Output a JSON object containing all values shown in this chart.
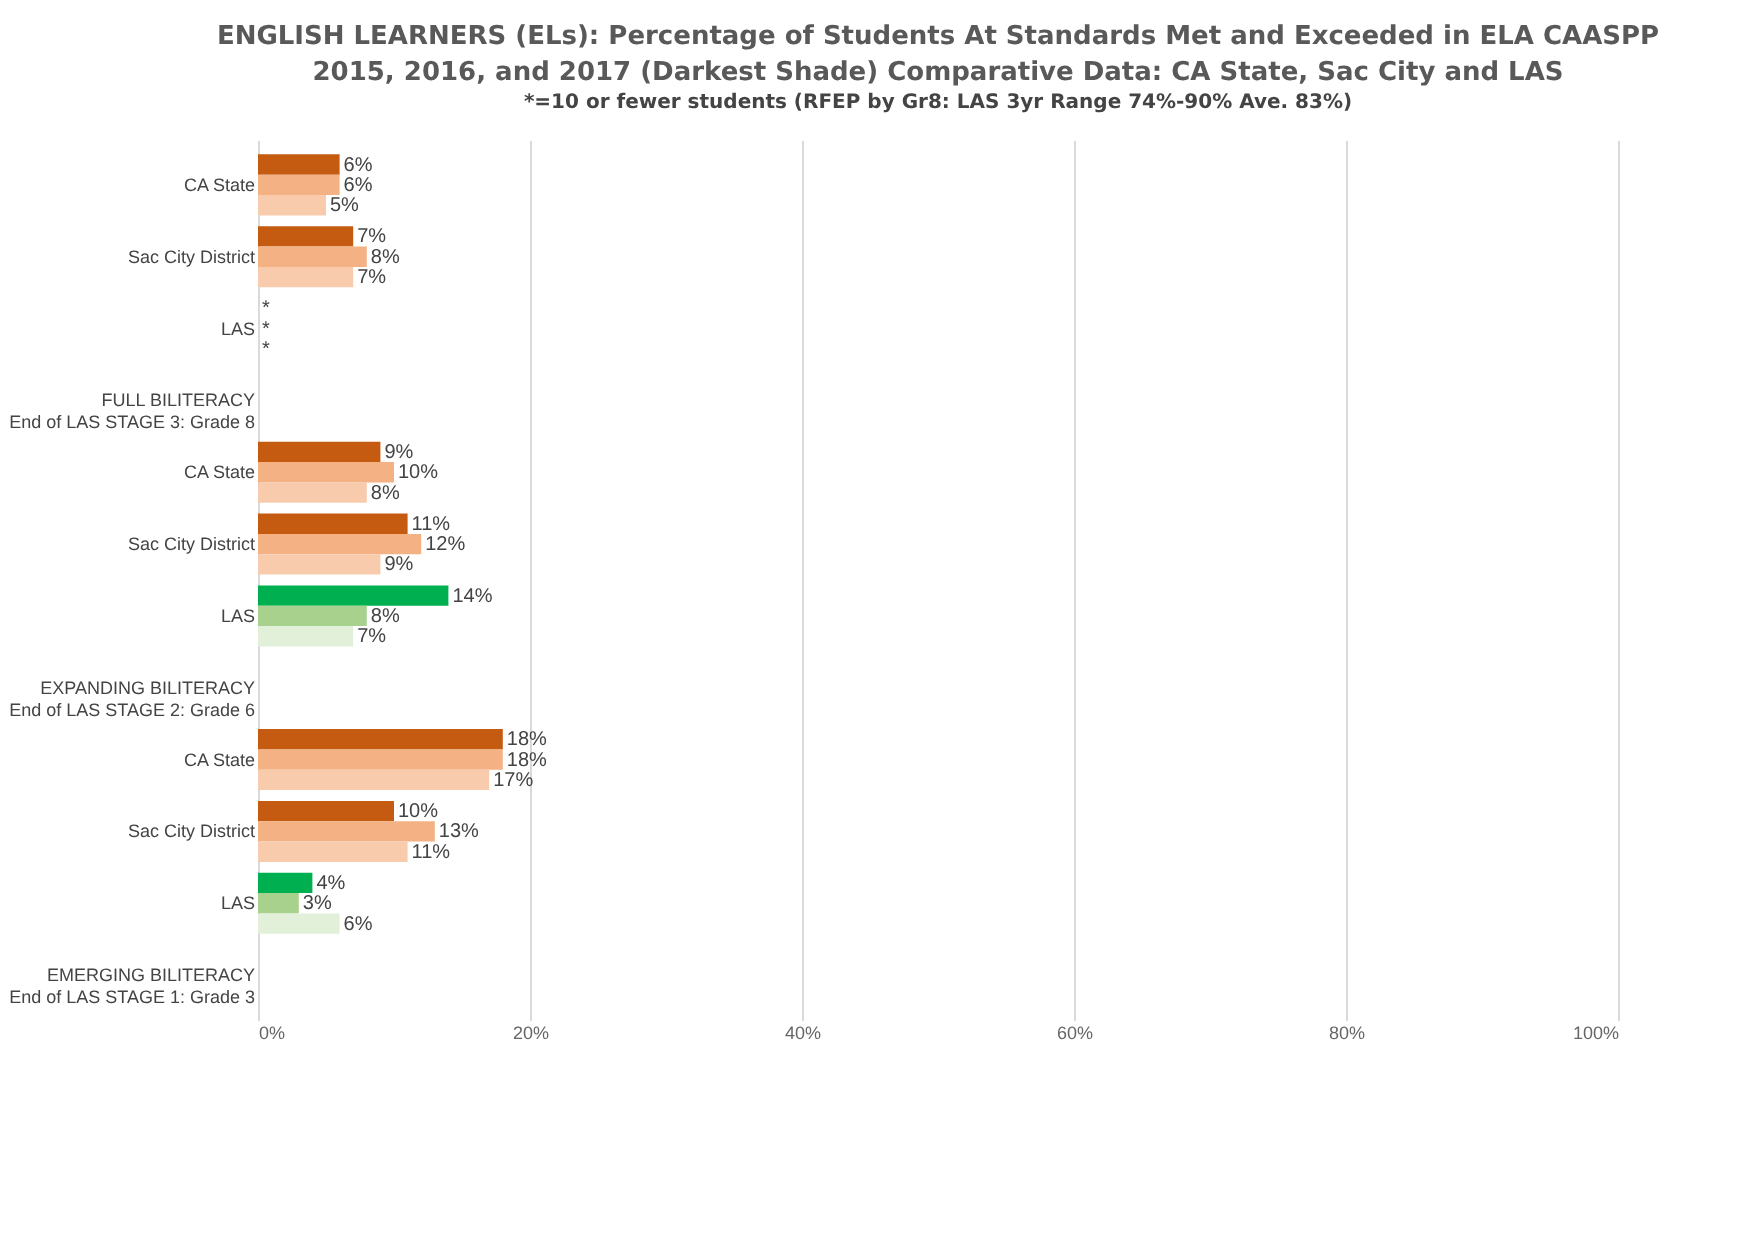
{
  "chart_data": {
    "type": "bar",
    "orientation": "horizontal",
    "title": "ENGLISH LEARNERS (ELs): Percentage of Students At Standards Met and Exceeded in ELA CAASPP\n2015, 2016, and 2017 (Darkest Shade) Comparative Data: CA State, Sac City and LAS",
    "subtitle": "*=10 or fewer students (RFEP by Gr8: LAS 3yr Range 74%-90% Ave. 83%)",
    "categories": [
      "CA State",
      "Sac City District",
      "LAS",
      "FULL BILITERACY\nEnd of LAS STAGE 3: Grade 8",
      "CA State",
      "Sac City District",
      "LAS",
      "EXPANDING BILITERACY\nEnd of LAS STAGE 2: Grade 6",
      "CA State",
      "Sac City District",
      "LAS",
      "EMERGING BILITERACY\nEnd of LAS STAGE 1: Grade 3"
    ],
    "series": [
      {
        "values": [
          6,
          7,
          null,
          null,
          9,
          11,
          14,
          null,
          18,
          10,
          4,
          null
        ],
        "value_labels": [
          "6%",
          "7%",
          "*",
          null,
          "9%",
          "11%",
          "14%",
          null,
          "18%",
          "10%",
          "4%",
          null
        ],
        "colors": [
          "#c55a11",
          "#c55a11",
          "#00b050",
          null,
          "#c55a11",
          "#c55a11",
          "#00b050",
          null,
          "#c55a11",
          "#c55a11",
          "#00b050",
          null
        ]
      },
      {
        "values": [
          6,
          8,
          null,
          null,
          10,
          12,
          8,
          null,
          18,
          13,
          3,
          null
        ],
        "value_labels": [
          "6%",
          "8%",
          "*",
          null,
          "10%",
          "12%",
          "8%",
          null,
          "18%",
          "13%",
          "3%",
          null
        ],
        "colors": [
          "#f4b183",
          "#f4b183",
          "#a9d18e",
          null,
          "#f4b183",
          "#f4b183",
          "#a9d18e",
          null,
          "#f4b183",
          "#f4b183",
          "#a9d18e",
          null
        ]
      },
      {
        "values": [
          5,
          7,
          null,
          null,
          8,
          9,
          7,
          null,
          17,
          11,
          6,
          null
        ],
        "value_labels": [
          "5%",
          "7%",
          "*",
          null,
          "8%",
          "9%",
          "7%",
          null,
          "17%",
          "11%",
          "6%",
          null
        ],
        "colors": [
          "#f8cbad",
          "#f8cbad",
          "#e2f0d9",
          null,
          "#f8cbad",
          "#f8cbad",
          "#e2f0d9",
          null,
          "#f8cbad",
          "#f8cbad",
          "#e2f0d9",
          null
        ]
      }
    ],
    "xlim": [
      0,
      100
    ],
    "xticks": [
      {
        "value": 0,
        "label": "0%"
      },
      {
        "value": 20,
        "label": "20%"
      },
      {
        "value": 40,
        "label": "40%"
      },
      {
        "value": 60,
        "label": "60%"
      },
      {
        "value": 80,
        "label": "80%"
      },
      {
        "value": 100,
        "label": "100%"
      }
    ],
    "grid": "x"
  }
}
